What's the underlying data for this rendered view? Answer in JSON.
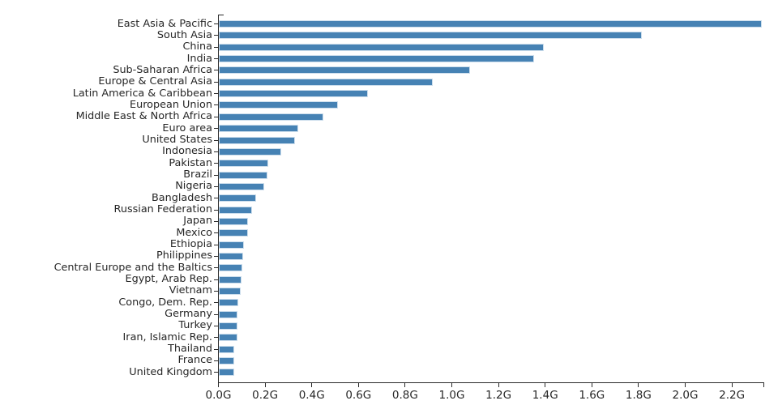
{
  "chart_data": {
    "type": "bar",
    "orientation": "horizontal",
    "title": "",
    "xlabel": "",
    "ylabel": "",
    "unit_suffix": "G",
    "xlim": [
      0,
      2.336
    ],
    "grid": false,
    "legend": "none",
    "bar_color": "#4682B4",
    "bar_edge_color": "#CBDDEC",
    "axis_color": "#2a2a2a",
    "text_color": "#262626",
    "x_tick_labels": [
      "0.0G",
      "0.2G",
      "0.4G",
      "0.6G",
      "0.8G",
      "1.0G",
      "1.2G",
      "1.4G",
      "1.6G",
      "1.8G",
      "2.0G",
      "2.2G"
    ],
    "x_tick_values": [
      0.0,
      0.2,
      0.4,
      0.6,
      0.8,
      1.0,
      1.2,
      1.4,
      1.6,
      1.8,
      2.0,
      2.2
    ],
    "categories": [
      "East Asia & Pacific",
      "South Asia",
      "China",
      "India",
      "Sub-Saharan Africa",
      "Europe & Central Asia",
      "Latin America & Caribbean",
      "European Union",
      "Middle East & North Africa",
      "Euro area",
      "United States",
      "Indonesia",
      "Pakistan",
      "Brazil",
      "Nigeria",
      "Bangladesh",
      "Russian Federation",
      "Japan",
      "Mexico",
      "Ethiopia",
      "Philippines",
      "Central Europe and the Baltics",
      "Egypt, Arab Rep.",
      "Vietnam",
      "Congo, Dem. Rep.",
      "Germany",
      "Turkey",
      "Iran, Islamic Rep.",
      "Thailand",
      "France",
      "United Kingdom"
    ],
    "values": [
      2.328,
      1.814,
      1.393,
      1.353,
      1.078,
      0.919,
      0.641,
      0.513,
      0.449,
      0.342,
      0.327,
      0.268,
      0.212,
      0.209,
      0.196,
      0.161,
      0.145,
      0.127,
      0.126,
      0.109,
      0.107,
      0.103,
      0.098,
      0.096,
      0.084,
      0.083,
      0.082,
      0.082,
      0.069,
      0.067,
      0.066
    ]
  }
}
